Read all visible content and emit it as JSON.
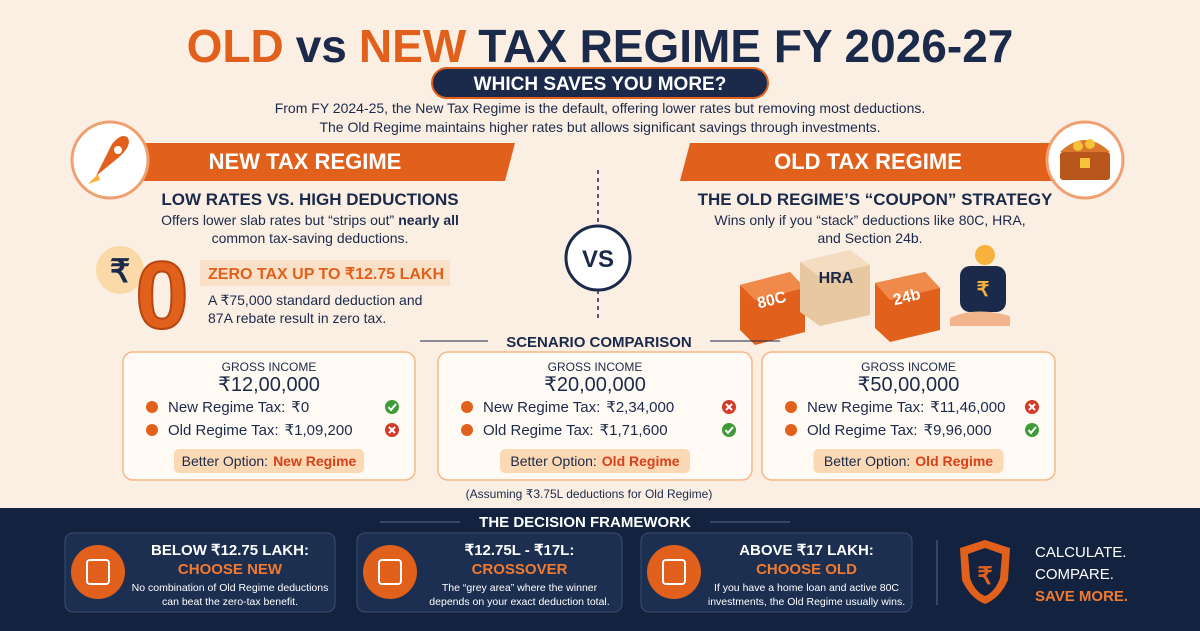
{
  "header": {
    "title": {
      "old": "OLD",
      "vs": "vs",
      "new": "NEW",
      "rest": "TAX REGIME FY 2026-27"
    },
    "subtitle": "WHICH SAVES YOU MORE?",
    "intro": [
      "From FY 2024-25, the New Tax Regime is the default, offering lower rates but removing most deductions.",
      "The Old Regime maintains higher rates but allows significant savings through investments."
    ]
  },
  "new_regime": {
    "heading": "NEW TAX REGIME",
    "subheading": "LOW RATES VS. HIGH DEDUCTIONS",
    "description": [
      "Offers lower slab rates but “strips out”",
      "nearly all",
      "common tax-saving deductions."
    ],
    "zero_tax": {
      "symbol": "₹",
      "digit": "0",
      "heading": "ZERO TAX UP TO ₹12.75 LAKH",
      "description": [
        "A ₹75,000 standard deduction and",
        "87A rebate result in zero tax."
      ]
    }
  },
  "vs": "VS",
  "old_regime": {
    "heading": "OLD TAX REGIME",
    "subheading": "THE OLD REGIME’S “COUPON” STRATEGY",
    "description": [
      "Wins only if you “stack” deductions like 80C, HRA,",
      "and Section 24b."
    ],
    "blocks": [
      "80C",
      "HRA",
      "24b"
    ],
    "jar_symbol": "₹"
  },
  "scenario": {
    "title": "SCENARIO COMPARISON",
    "cards": [
      {
        "gross_label": "GROSS INCOME",
        "gross_income": "₹12,00,000",
        "new_label": "New Regime Tax:",
        "new_tax": "₹0",
        "old_label": "Old Regime Tax:",
        "old_tax": "₹1,09,200",
        "better_label": "Better Option:",
        "better": "New Regime"
      },
      {
        "gross_label": "GROSS INCOME",
        "gross_income": "₹20,00,000",
        "new_label": "New Regime Tax:",
        "new_tax": "₹2,34,000",
        "old_label": "Old Regime Tax:",
        "old_tax": "₹1,71,600",
        "better_label": "Better Option:",
        "better": "Old Regime"
      },
      {
        "gross_label": "GROSS INCOME",
        "gross_income": "₹50,00,000",
        "new_label": "New Regime Tax:",
        "new_tax": "₹11,46,000",
        "old_label": "Old Regime Tax:",
        "old_tax": "₹9,96,000",
        "better_label": "Better Option:",
        "better": "Old Regime"
      }
    ],
    "note": "(Assuming ₹3.75L deductions for Old Regime)"
  },
  "framework": {
    "title": "THE DECISION FRAMEWORK",
    "items": [
      {
        "line1": "BELOW ₹12.75 LAKH:",
        "line2": "CHOOSE NEW",
        "description": [
          "No combination of Old Regime deductions",
          "can beat the zero-tax benefit."
        ]
      },
      {
        "line1": "₹12.75L - ₹17L:",
        "line2": "CROSSOVER",
        "description": [
          "The “grey area” where the winner",
          "depends on your exact deduction total."
        ]
      },
      {
        "line1": "ABOVE ₹17 LAKH:",
        "line2": "CHOOSE OLD",
        "description": [
          "If you have a home loan and active 80C",
          "investments, the Old Regime usually wins."
        ]
      }
    ],
    "cta": [
      "CALCULATE.",
      "COMPARE.",
      "SAVE MORE."
    ]
  }
}
